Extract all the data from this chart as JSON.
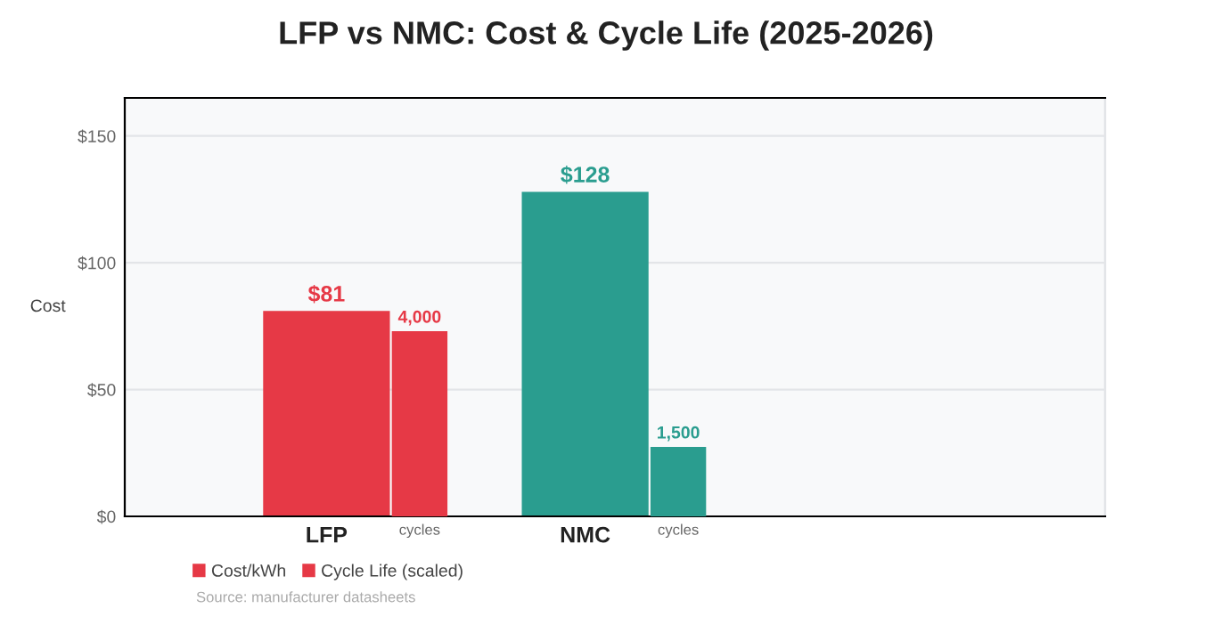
{
  "chart_data": {
    "type": "bar",
    "title": "LFP vs NMC: Cost & Cycle Life (2025-2026)",
    "ylabel": "Cost",
    "categories": [
      "LFP",
      "NMC"
    ],
    "series": [
      {
        "name": "Cost/kWh",
        "color": "#e63946",
        "colors": [
          "#e63946",
          "#2a9d8f"
        ],
        "values": [
          81,
          128
        ],
        "value_labels": [
          "$81",
          "$128"
        ]
      },
      {
        "name": "Cycle Life (scaled)",
        "color": "#e63946",
        "colors": [
          "#e63946",
          "#2a9d8f"
        ],
        "values": [
          4000,
          1500
        ],
        "value_labels": [
          "4,000",
          "1,500"
        ],
        "axis": "y2"
      }
    ],
    "ylim": [
      0,
      165
    ],
    "y2lim": [
      0,
      9040
    ],
    "yticks": [
      {
        "value": 0,
        "label": "$0"
      },
      {
        "value": 50,
        "label": "$50"
      },
      {
        "value": 100,
        "label": "$100"
      },
      {
        "value": 150,
        "label": "$150"
      }
    ],
    "grid": "y",
    "legend": "bottom left",
    "annotations": [
      "cycles",
      "cycles",
      "Source: manufacturer datasheets"
    ]
  }
}
